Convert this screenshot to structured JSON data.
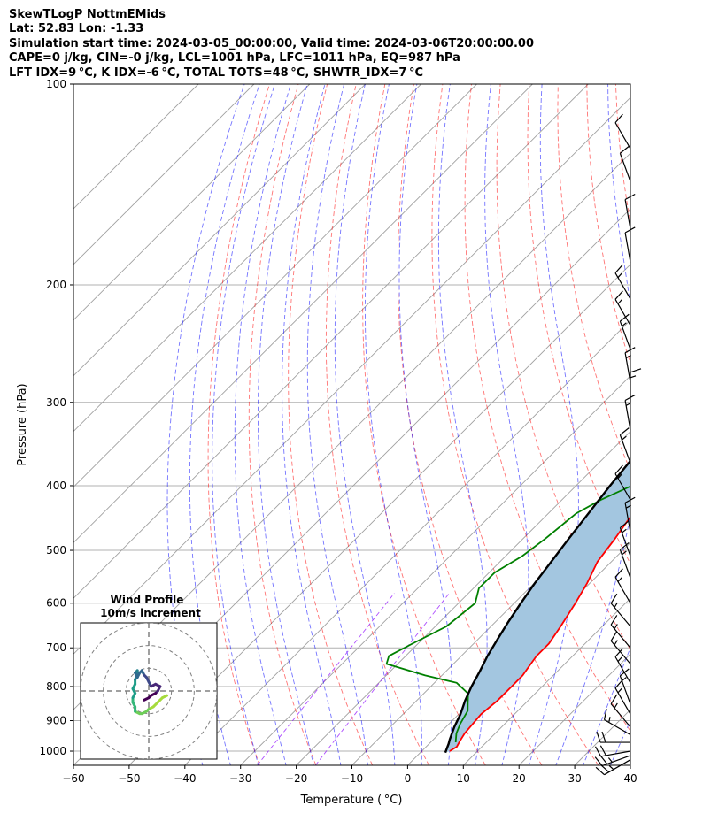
{
  "header": {
    "line1": "SkewTLogP NottmEMids",
    "line2": "Lat: 52.83   Lon: -1.33",
    "line3": "Simulation start time: 2024-03-05_00:00:00, Valid time: 2024-03-06T20:00:00.00",
    "line4": "CAPE=0 j/kg, CIN=-0 j/kg, LCL=1001 hPa, LFC=1011 hPa, EQ=987 hPa",
    "line5": "LFT IDX=9 °C, K IDX=-6 °C, TOTAL TOTS=48 °C, SHWTR_IDX=7 °C"
  },
  "chart_data": {
    "type": "line",
    "subtype": "skew-t log-p",
    "xlabel": "Temperature ( °C)",
    "ylabel": "Pressure (hPa)",
    "xlim": [
      -60,
      40
    ],
    "ylim": [
      1050,
      100
    ],
    "yscale": "log",
    "x_ticks": [
      "−60",
      "−50",
      "−40",
      "−30",
      "−20",
      "−10",
      "0",
      "10",
      "20",
      "30",
      "40"
    ],
    "y_ticks": [
      1000,
      900,
      800,
      700,
      600,
      500,
      400,
      300,
      200,
      100
    ],
    "grid": true,
    "colors": {
      "temperature": "#ff0000",
      "dewpoint": "#008000",
      "parcel": "#000000",
      "cape_fill": "#a3c6e0",
      "dry_adiabat": "#ff0000",
      "moist_adiabat": "#0000ff",
      "mixing_ratio": "#8b00ff",
      "isotherm": "#808080"
    },
    "series": [
      {
        "name": "Temperature",
        "points": [
          [
            5,
            1000
          ],
          [
            5.5,
            985
          ],
          [
            5,
            965
          ],
          [
            4.5,
            940
          ],
          [
            4,
            880
          ],
          [
            4.5,
            840
          ],
          [
            4.5,
            800
          ],
          [
            4.5,
            770
          ],
          [
            4,
            745
          ],
          [
            3.5,
            720
          ],
          [
            3.5,
            690
          ],
          [
            2.5,
            650
          ],
          [
            1,
            600
          ],
          [
            -0.5,
            560
          ],
          [
            -2.5,
            520
          ],
          [
            -3.5,
            480
          ],
          [
            -4.5,
            450
          ],
          [
            -5,
            430
          ],
          [
            -5,
            410
          ],
          [
            -4.5,
            390
          ],
          [
            -5,
            360
          ],
          [
            -6,
            330
          ],
          [
            -6.5,
            290
          ],
          [
            -7,
            270
          ],
          [
            -7,
            250
          ],
          [
            -6,
            230
          ],
          [
            -4.5,
            210
          ],
          [
            -3.5,
            200
          ],
          [
            -3.5,
            190
          ],
          [
            -2.5,
            180
          ],
          [
            -2,
            170
          ],
          [
            -1,
            160
          ],
          [
            0,
            150
          ],
          [
            1,
            140
          ],
          [
            1.5,
            130
          ],
          [
            2,
            120
          ],
          [
            1.5,
            110
          ],
          [
            1,
            100
          ]
        ]
      },
      {
        "name": "Dewpoint",
        "points": [
          [
            4.5,
            970
          ],
          [
            4,
            960
          ],
          [
            3,
            940
          ],
          [
            2,
            910
          ],
          [
            1,
            870
          ],
          [
            -0.5,
            845
          ],
          [
            -2,
            820
          ],
          [
            -6,
            790
          ],
          [
            -13,
            770
          ],
          [
            -22,
            740
          ],
          [
            -23,
            720
          ],
          [
            -21,
            690
          ],
          [
            -18,
            650
          ],
          [
            -17,
            600
          ],
          [
            -19,
            570
          ],
          [
            -19,
            540
          ],
          [
            -17,
            510
          ],
          [
            -16,
            480
          ],
          [
            -15,
            440
          ],
          [
            -13,
            420
          ],
          [
            -10,
            400
          ],
          [
            -8,
            380
          ],
          [
            -9,
            360
          ],
          [
            -9,
            340
          ],
          [
            -9,
            300
          ],
          [
            -8,
            280
          ],
          [
            -7.5,
            260
          ],
          [
            -7,
            240
          ],
          [
            -6,
            220
          ],
          [
            -5,
            200
          ],
          [
            -5,
            190
          ],
          [
            -6,
            180
          ],
          [
            -7,
            170
          ],
          [
            -8,
            160
          ],
          [
            -8,
            150
          ],
          [
            -7,
            140
          ],
          [
            -4,
            130
          ],
          [
            -2,
            120
          ],
          [
            0,
            110
          ],
          [
            1,
            100
          ]
        ]
      },
      {
        "name": "Parcel",
        "points": [
          [
            4.5,
            1005
          ],
          [
            4,
            990
          ],
          [
            3.5,
            975
          ],
          [
            2.9,
            960
          ],
          [
            1.5,
            920
          ],
          [
            0.3,
            880
          ],
          [
            -1.3,
            840
          ],
          [
            -2.7,
            800
          ],
          [
            -3.9,
            760
          ],
          [
            -5.3,
            720
          ],
          [
            -6.5,
            680
          ],
          [
            -7.7,
            640
          ],
          [
            -8.8,
            600
          ],
          [
            -9.9,
            560
          ],
          [
            -10.8,
            520
          ],
          [
            -11.8,
            480
          ],
          [
            -12.8,
            440
          ],
          [
            -13.9,
            400
          ],
          [
            -14.9,
            360
          ],
          [
            -16.1,
            320
          ],
          [
            -17.2,
            280
          ],
          [
            -18.2,
            250
          ],
          [
            -19.2,
            220
          ],
          [
            -20.1,
            200
          ],
          [
            -20.9,
            180
          ],
          [
            -22.1,
            160
          ],
          [
            -23.5,
            140
          ],
          [
            -24.8,
            125
          ],
          [
            -26.4,
            110
          ],
          [
            -27.5,
            100
          ]
        ]
      }
    ],
    "wind_barbs": {
      "pressures": [
        1030,
        1015,
        1000,
        970,
        945,
        920,
        880,
        850,
        790,
        740,
        700,
        650,
        600,
        550,
        510,
        470,
        420,
        370,
        330,
        300,
        280,
        250,
        230,
        210,
        185,
        165,
        140,
        125
      ],
      "speed_kt": [
        25,
        25,
        20,
        20,
        15,
        15,
        15,
        15,
        15,
        15,
        15,
        15,
        15,
        15,
        15,
        15,
        15,
        15,
        15,
        15,
        15,
        15,
        15,
        15,
        10,
        10,
        10,
        10
      ],
      "direction_deg": [
        240,
        250,
        260,
        270,
        300,
        320,
        330,
        340,
        330,
        320,
        320,
        320,
        330,
        340,
        340,
        350,
        330,
        340,
        350,
        0,
        350,
        340,
        330,
        330,
        350,
        350,
        340,
        330
      ]
    },
    "hodograph": {
      "title": "Wind Profile",
      "subtitle": "10m/s increment",
      "range": 30,
      "ring_step": 10,
      "points": [
        [
          8,
          -2
        ],
        [
          6,
          -3
        ],
        [
          4,
          -5
        ],
        [
          2,
          -7
        ],
        [
          0,
          -8
        ],
        [
          -1,
          -9
        ],
        [
          -3,
          -10
        ],
        [
          -4,
          -10
        ],
        [
          -6,
          -9
        ],
        [
          -6,
          -7
        ],
        [
          -7,
          -5
        ],
        [
          -7,
          -3
        ],
        [
          -6,
          -1
        ],
        [
          -7,
          1
        ],
        [
          -6,
          3
        ],
        [
          -6,
          5
        ],
        [
          -5,
          7
        ],
        [
          -5,
          9
        ],
        [
          -6,
          8
        ],
        [
          -5,
          6
        ],
        [
          -4,
          8
        ],
        [
          -3,
          9
        ],
        [
          -2,
          7
        ],
        [
          -1,
          6
        ],
        [
          0,
          4
        ],
        [
          1,
          2
        ],
        [
          3,
          3
        ],
        [
          5,
          2
        ],
        [
          4,
          0
        ],
        [
          3,
          -1
        ],
        [
          1,
          -2
        ],
        [
          0,
          -3
        ],
        [
          -2,
          -4
        ]
      ]
    }
  }
}
